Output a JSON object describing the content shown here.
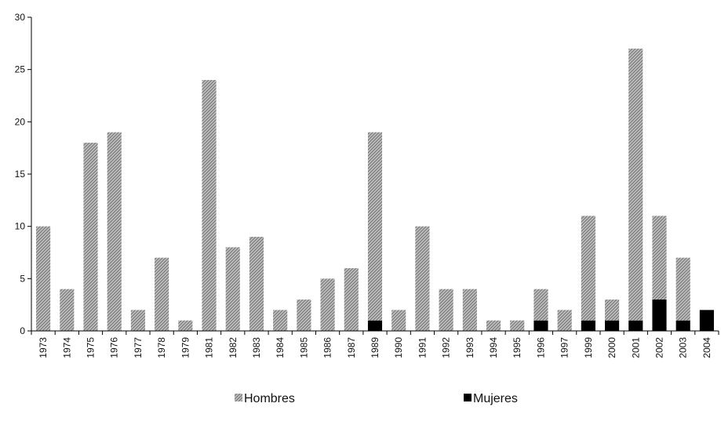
{
  "chart_data": {
    "type": "bar",
    "stacked": true,
    "categories": [
      "1973",
      "1974",
      "1975",
      "1976",
      "1977",
      "1978",
      "1979",
      "1981",
      "1982",
      "1983",
      "1984",
      "1985",
      "1986",
      "1987",
      "1989",
      "1990",
      "1991",
      "1992",
      "1993",
      "1994",
      "1995",
      "1996",
      "1997",
      "1999",
      "2000",
      "2001",
      "2002",
      "2003",
      "2004"
    ],
    "series": [
      {
        "name": "Mujeres",
        "color": "#000000",
        "values": [
          0,
          0,
          0,
          0,
          0,
          0,
          0,
          0,
          0,
          0,
          0,
          0,
          0,
          0,
          1,
          0,
          0,
          0,
          0,
          0,
          0,
          1,
          0,
          1,
          1,
          1,
          3,
          1,
          2
        ]
      },
      {
        "name": "Hombres",
        "color": "#a8a8a8",
        "values": [
          10,
          4,
          18,
          19,
          2,
          7,
          1,
          24,
          8,
          9,
          2,
          3,
          5,
          6,
          18,
          2,
          10,
          4,
          4,
          1,
          1,
          3,
          2,
          10,
          2,
          26,
          8,
          6,
          0
        ]
      }
    ],
    "yticks": [
      "0",
      "5",
      "10",
      "15",
      "20",
      "25",
      "30"
    ],
    "ylim": [
      0,
      30
    ],
    "xlabel": "",
    "ylabel": "",
    "title": "",
    "grid": false,
    "legend_position": "bottom",
    "legend": [
      {
        "name": "Hombres",
        "color": "#a8a8a8"
      },
      {
        "name": "Mujeres",
        "color": "#000000"
      }
    ]
  }
}
